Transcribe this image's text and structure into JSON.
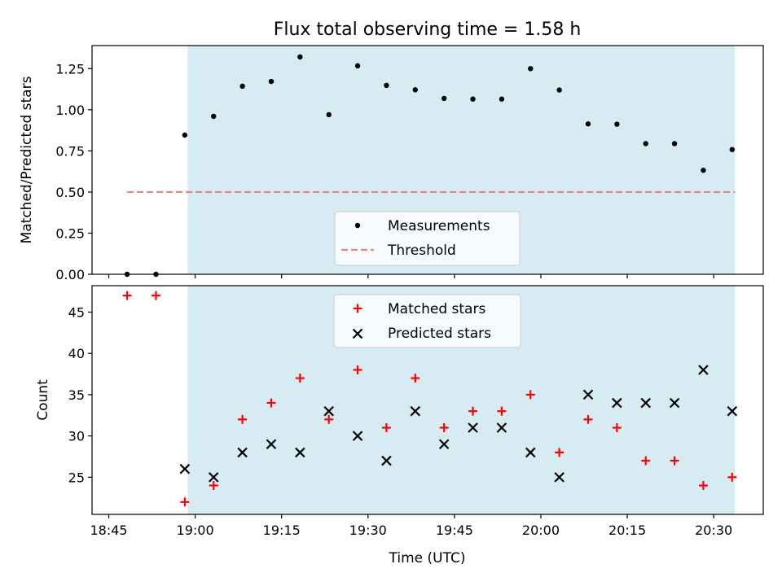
{
  "chart_data": {
    "type": "scatter",
    "title": "Flux total observing time = 1.58 h",
    "xlabel": "Time (UTC)",
    "x_tick_labels": [
      "18:45",
      "19:00",
      "19:15",
      "19:30",
      "19:45",
      "20:00",
      "20:15",
      "20:30"
    ],
    "x_tick_minutes": [
      1125,
      1140,
      1155,
      1170,
      1185,
      1200,
      1215,
      1230
    ],
    "xlim_minutes": [
      1122.1,
      1238.6
    ],
    "shaded_span_minutes": [
      1138.7,
      1233.7
    ],
    "shade_color": "#add8e6",
    "time_labels": [
      "18:48",
      "18:53",
      "18:58",
      "19:03",
      "19:08",
      "19:13",
      "19:18",
      "19:23",
      "19:28",
      "19:33",
      "19:38",
      "19:43",
      "19:48",
      "19:53",
      "19:58",
      "20:03",
      "20:08",
      "20:13",
      "20:18",
      "20:23",
      "20:28",
      "20:33"
    ],
    "time_minutes": [
      1128.2,
      1133.2,
      1138.2,
      1143.2,
      1148.2,
      1153.2,
      1158.2,
      1163.2,
      1168.2,
      1173.2,
      1178.2,
      1183.2,
      1188.2,
      1193.2,
      1198.2,
      1203.2,
      1208.2,
      1213.2,
      1218.2,
      1223.2,
      1228.2,
      1233.2
    ],
    "top": {
      "ylabel": "Matched/Predicted stars",
      "ylim": [
        0,
        1.39
      ],
      "y_ticks": [
        0.0,
        0.25,
        0.5,
        0.75,
        1.0,
        1.25
      ],
      "y_tick_labels": [
        "0.00",
        "0.25",
        "0.50",
        "0.75",
        "1.00",
        "1.25"
      ],
      "threshold": 0.5,
      "threshold_x_minutes": [
        1128.2,
        1233.7
      ],
      "series": [
        {
          "name": "Measurements",
          "color": "#000000",
          "values": [
            0.0,
            0.0,
            0.846,
            0.96,
            1.143,
            1.172,
            1.321,
            0.97,
            1.267,
            1.148,
            1.121,
            1.069,
            1.065,
            1.065,
            1.25,
            1.12,
            0.914,
            0.912,
            0.794,
            0.794,
            0.632,
            0.758
          ]
        }
      ],
      "legend": {
        "position": "lower-center",
        "measurements_label": "Measurements",
        "threshold_label": "Threshold"
      },
      "threshold_color": "#f08080"
    },
    "bottom": {
      "ylabel": "Count",
      "ylim": [
        20.5,
        48.2
      ],
      "y_ticks": [
        25,
        30,
        35,
        40,
        45
      ],
      "y_tick_labels": [
        "25",
        "30",
        "35",
        "40",
        "45"
      ],
      "series": [
        {
          "name": "Matched stars",
          "color": "#ff0000",
          "marker": "+",
          "values": [
            47,
            47,
            22,
            24,
            32,
            34,
            37,
            32,
            38,
            31,
            37,
            31,
            33,
            33,
            35,
            28,
            32,
            31,
            27,
            27,
            24,
            25
          ]
        },
        {
          "name": "Predicted stars",
          "color": "#000000",
          "marker": "x",
          "values": [
            null,
            null,
            26,
            25,
            28,
            29,
            28,
            33,
            30,
            27,
            33,
            29,
            31,
            31,
            28,
            25,
            35,
            34,
            34,
            34,
            38,
            33
          ]
        }
      ],
      "legend": {
        "position": "upper-center",
        "matched_label": "Matched stars",
        "predicted_label": "Predicted stars"
      }
    }
  }
}
